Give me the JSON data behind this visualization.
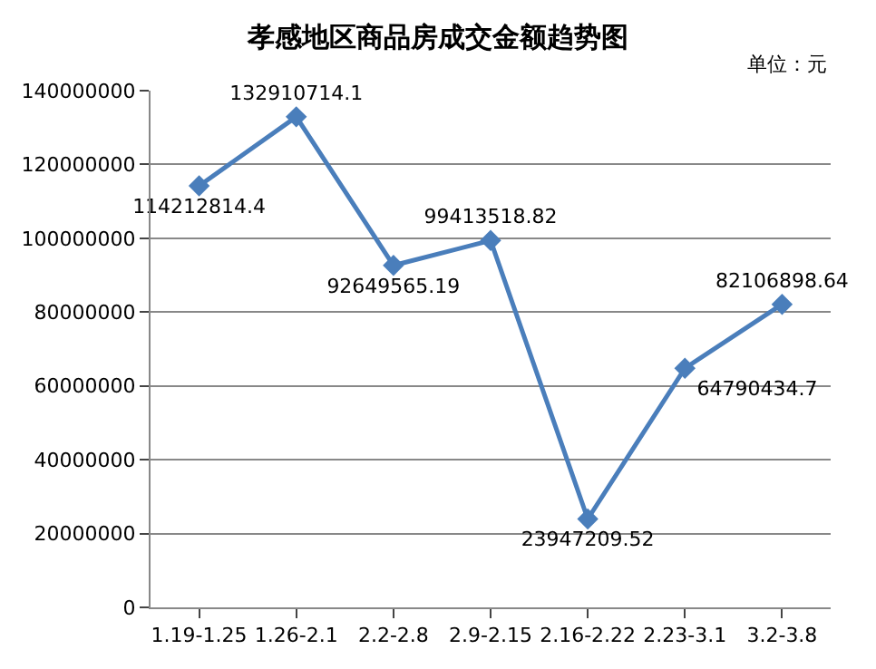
{
  "chart_data": {
    "type": "line",
    "title": "孝感地区商品房成交金额趋势图",
    "annotations": [
      "单位：元"
    ],
    "categories": [
      "1.19-1.25",
      "1.26-2.1",
      "2.2-2.8",
      "2.9-2.15",
      "2.16-2.22",
      "2.23-3.1",
      "3.2-3.8"
    ],
    "series": [
      {
        "color": "#4a7ebb",
        "values": [
          114212814.4,
          132910714.1,
          92649565.19,
          99413518.82,
          23947209.52,
          64790434.7,
          82106898.64
        ]
      }
    ],
    "ylim": [
      0,
      140000000
    ],
    "yticks": [
      0,
      20000000,
      40000000,
      60000000,
      80000000,
      100000000,
      120000000,
      140000000
    ],
    "grid": "y",
    "marker": "diamond",
    "line_style": "solid",
    "data_labels": true,
    "legend": false
  }
}
